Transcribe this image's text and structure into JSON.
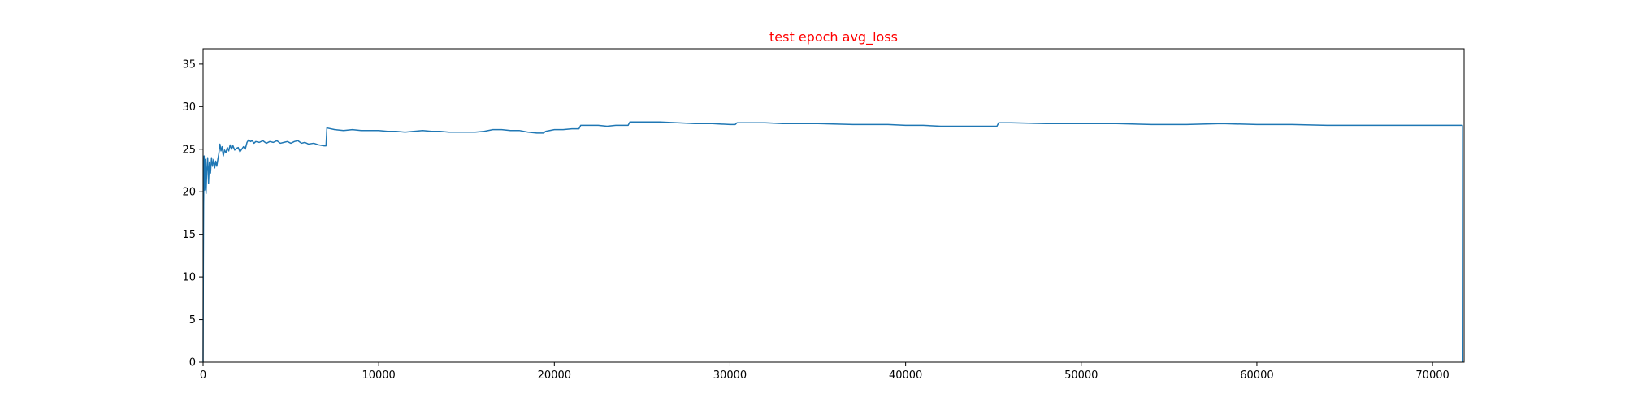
{
  "chart_data": {
    "type": "line",
    "title": "test epoch avg_loss",
    "title_color": "#ff0000",
    "xlabel": "",
    "ylabel": "",
    "xlim": [
      0,
      71800
    ],
    "ylim": [
      0,
      36.8
    ],
    "xticks": [
      0,
      10000,
      20000,
      30000,
      40000,
      50000,
      60000,
      70000
    ],
    "yticks": [
      0,
      5,
      10,
      15,
      20,
      25,
      30,
      35
    ],
    "grid": false,
    "legend": "none",
    "series": [
      {
        "color": "#1f77b4",
        "points": [
          [
            0,
            0
          ],
          [
            15,
            11.2
          ],
          [
            30,
            18.5
          ],
          [
            60,
            24.2
          ],
          [
            90,
            20.2
          ],
          [
            130,
            23.8
          ],
          [
            170,
            19.8
          ],
          [
            210,
            22.5
          ],
          [
            260,
            24.0
          ],
          [
            310,
            21.0
          ],
          [
            360,
            23.5
          ],
          [
            420,
            22.2
          ],
          [
            480,
            24.0
          ],
          [
            540,
            23.0
          ],
          [
            600,
            23.8
          ],
          [
            660,
            22.8
          ],
          [
            720,
            23.6
          ],
          [
            780,
            23.0
          ],
          [
            840,
            23.8
          ],
          [
            900,
            24.5
          ],
          [
            960,
            25.6
          ],
          [
            1020,
            24.8
          ],
          [
            1080,
            25.3
          ],
          [
            1150,
            24.2
          ],
          [
            1220,
            24.9
          ],
          [
            1300,
            24.6
          ],
          [
            1380,
            25.2
          ],
          [
            1460,
            24.8
          ],
          [
            1540,
            25.5
          ],
          [
            1620,
            25.0
          ],
          [
            1700,
            25.4
          ],
          [
            1800,
            24.9
          ],
          [
            1900,
            25.1
          ],
          [
            2000,
            25.2
          ],
          [
            2100,
            24.7
          ],
          [
            2200,
            25.0
          ],
          [
            2300,
            25.3
          ],
          [
            2400,
            25.0
          ],
          [
            2500,
            25.8
          ],
          [
            2600,
            26.1
          ],
          [
            2700,
            25.9
          ],
          [
            2800,
            26.0
          ],
          [
            2900,
            25.7
          ],
          [
            3000,
            25.9
          ],
          [
            3200,
            25.8
          ],
          [
            3400,
            26.0
          ],
          [
            3600,
            25.7
          ],
          [
            3800,
            25.9
          ],
          [
            4000,
            25.8
          ],
          [
            4200,
            26.0
          ],
          [
            4400,
            25.7
          ],
          [
            4600,
            25.8
          ],
          [
            4800,
            25.9
          ],
          [
            5000,
            25.7
          ],
          [
            5200,
            25.9
          ],
          [
            5400,
            26.0
          ],
          [
            5600,
            25.7
          ],
          [
            5800,
            25.8
          ],
          [
            6000,
            25.6
          ],
          [
            6300,
            25.7
          ],
          [
            6600,
            25.5
          ],
          [
            6900,
            25.4
          ],
          [
            7000,
            25.4
          ],
          [
            7050,
            27.5
          ],
          [
            7500,
            27.3
          ],
          [
            8000,
            27.2
          ],
          [
            8500,
            27.3
          ],
          [
            9000,
            27.2
          ],
          [
            9500,
            27.2
          ],
          [
            10000,
            27.2
          ],
          [
            10500,
            27.1
          ],
          [
            11000,
            27.1
          ],
          [
            11500,
            27.0
          ],
          [
            12000,
            27.1
          ],
          [
            12500,
            27.2
          ],
          [
            13000,
            27.1
          ],
          [
            13500,
            27.1
          ],
          [
            14000,
            27.0
          ],
          [
            14500,
            27.0
          ],
          [
            15000,
            27.0
          ],
          [
            15500,
            27.0
          ],
          [
            16000,
            27.1
          ],
          [
            16500,
            27.3
          ],
          [
            17000,
            27.3
          ],
          [
            17500,
            27.2
          ],
          [
            18000,
            27.2
          ],
          [
            18500,
            27.0
          ],
          [
            19000,
            26.9
          ],
          [
            19400,
            26.9
          ],
          [
            19500,
            27.1
          ],
          [
            20000,
            27.3
          ],
          [
            20500,
            27.3
          ],
          [
            21000,
            27.4
          ],
          [
            21400,
            27.4
          ],
          [
            21500,
            27.8
          ],
          [
            22000,
            27.8
          ],
          [
            22500,
            27.8
          ],
          [
            23000,
            27.7
          ],
          [
            23500,
            27.8
          ],
          [
            24200,
            27.8
          ],
          [
            24300,
            28.2
          ],
          [
            25000,
            28.2
          ],
          [
            26000,
            28.2
          ],
          [
            27000,
            28.1
          ],
          [
            28000,
            28.0
          ],
          [
            29000,
            28.0
          ],
          [
            30000,
            27.9
          ],
          [
            30300,
            27.9
          ],
          [
            30400,
            28.1
          ],
          [
            31000,
            28.1
          ],
          [
            32000,
            28.1
          ],
          [
            33000,
            28.0
          ],
          [
            35000,
            28.0
          ],
          [
            37000,
            27.9
          ],
          [
            39000,
            27.9
          ],
          [
            40000,
            27.8
          ],
          [
            41000,
            27.8
          ],
          [
            42000,
            27.7
          ],
          [
            43000,
            27.7
          ],
          [
            44000,
            27.7
          ],
          [
            45200,
            27.7
          ],
          [
            45300,
            28.1
          ],
          [
            46000,
            28.1
          ],
          [
            48000,
            28.0
          ],
          [
            50000,
            28.0
          ],
          [
            52000,
            28.0
          ],
          [
            54000,
            27.9
          ],
          [
            56000,
            27.9
          ],
          [
            58000,
            28.0
          ],
          [
            60000,
            27.9
          ],
          [
            62000,
            27.9
          ],
          [
            64000,
            27.8
          ],
          [
            66000,
            27.8
          ],
          [
            68000,
            27.8
          ],
          [
            70000,
            27.8
          ],
          [
            71700,
            27.8
          ],
          [
            71720,
            0
          ]
        ]
      }
    ]
  }
}
